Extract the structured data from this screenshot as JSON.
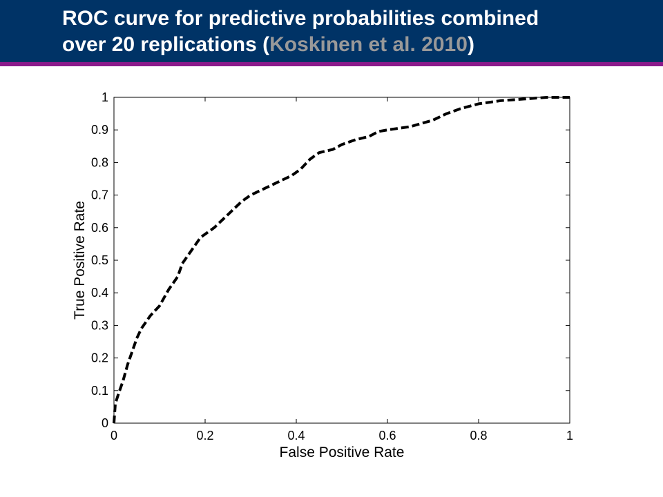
{
  "slide": {
    "title_part1": "ROC curve for predictive probabilities combined",
    "title_part2_prefix": "over 20 replications (",
    "title_link": "Koskinen et al. 2010",
    "title_part2_suffix": ")",
    "colors": {
      "title_bar": "#003366",
      "accent_rule": "#8b1a8b",
      "title_text": "#ffffff",
      "link_text": "#999999"
    }
  },
  "chart_data": {
    "type": "line",
    "title": "",
    "xlabel": "False Positive Rate",
    "ylabel": "True Positive Rate",
    "xlim": [
      0,
      1
    ],
    "ylim": [
      0,
      1
    ],
    "xticks": [
      "0",
      "0.2",
      "0.4",
      "0.6",
      "0.8",
      "1"
    ],
    "yticks": [
      "0",
      "0.1",
      "0.2",
      "0.3",
      "0.4",
      "0.5",
      "0.6",
      "0.7",
      "0.8",
      "0.9",
      "1"
    ],
    "grid": false,
    "line_style": "dashed",
    "line_color": "#000000",
    "series": [
      {
        "x": [
          0,
          0.003,
          0.01,
          0.02,
          0.03,
          0.04,
          0.05,
          0.06,
          0.08,
          0.1,
          0.12,
          0.14,
          0.15,
          0.17,
          0.19,
          0.22,
          0.25,
          0.28,
          0.3,
          0.33,
          0.36,
          0.39,
          0.41,
          0.43,
          0.45,
          0.48,
          0.5,
          0.53,
          0.56,
          0.58,
          0.6,
          0.65,
          0.7,
          0.73,
          0.76,
          0.8,
          0.85,
          0.9,
          0.95,
          1
        ],
        "y": [
          0,
          0.06,
          0.09,
          0.13,
          0.18,
          0.22,
          0.26,
          0.29,
          0.33,
          0.36,
          0.41,
          0.45,
          0.49,
          0.53,
          0.57,
          0.6,
          0.64,
          0.68,
          0.7,
          0.72,
          0.74,
          0.76,
          0.78,
          0.81,
          0.83,
          0.84,
          0.855,
          0.87,
          0.88,
          0.895,
          0.9,
          0.91,
          0.93,
          0.95,
          0.965,
          0.98,
          0.99,
          0.995,
          1,
          1
        ]
      }
    ]
  }
}
